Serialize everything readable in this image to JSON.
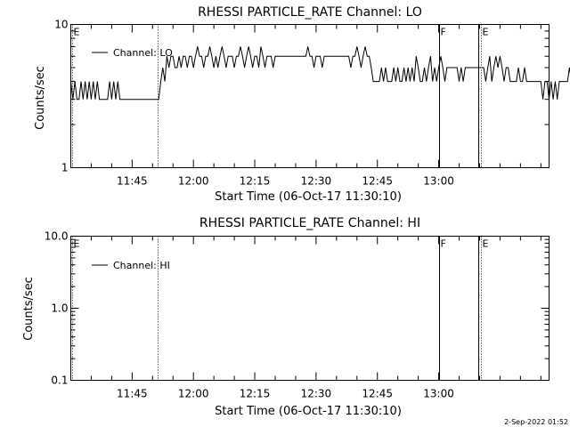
{
  "footer": {
    "stamp": "2-Sep-2022 01:52"
  },
  "chart_data": [
    {
      "type": "line",
      "title": "RHESSI PARTICLE_RATE Channel: LO",
      "xlabel": "Start Time (06-Oct-17 11:30:10)",
      "ylabel": "Counts/sec",
      "yscale": "log",
      "ylim": [
        1,
        10
      ],
      "y_ticks": [
        {
          "v": 1,
          "label": "1"
        },
        {
          "v": 10,
          "label": "10"
        }
      ],
      "xlim": [
        0,
        117
      ],
      "x_ticks": [
        {
          "v": 15,
          "label": "11:45"
        },
        {
          "v": 30,
          "label": "12:00"
        },
        {
          "v": 45,
          "label": "12:15"
        },
        {
          "v": 60,
          "label": "12:30"
        },
        {
          "v": 75,
          "label": "12:45"
        },
        {
          "v": 90,
          "label": "13:00"
        }
      ],
      "legend": {
        "label": "Channel: LO",
        "placement": "top-left"
      },
      "markers": [
        {
          "x": 0.3,
          "label": "E",
          "style": "dotted"
        },
        {
          "x": 21.2,
          "label": "",
          "style": "dotted"
        },
        {
          "x": 90.2,
          "label": "F",
          "style": "solid"
        },
        {
          "x": 99.7,
          "label": "",
          "style": "solid"
        },
        {
          "x": 100.3,
          "label": "E",
          "style": "dotted"
        },
        {
          "x": 121.2,
          "label": "",
          "style": "dotted"
        }
      ],
      "series": [
        {
          "name": "Channel: LO",
          "x_start": 0,
          "x_step": 1,
          "values": [
            4,
            3,
            4,
            3,
            3,
            4,
            3,
            4,
            3,
            4,
            3,
            4,
            3,
            4,
            3,
            3,
            3,
            3,
            3,
            4,
            3,
            4,
            3,
            4,
            3,
            3,
            3,
            3,
            3,
            3,
            3,
            3,
            3,
            3,
            3,
            3,
            3,
            3,
            3,
            3,
            3,
            3,
            3,
            3,
            4,
            5,
            4,
            6,
            5,
            6,
            6,
            5,
            5,
            6,
            5,
            6,
            6,
            5,
            6,
            6,
            5,
            6,
            7,
            6,
            6,
            5,
            6,
            6,
            7,
            6,
            5,
            6,
            5,
            6,
            7,
            6,
            5,
            6,
            6,
            6,
            5,
            6,
            6,
            7,
            6,
            5,
            6,
            7,
            6,
            5,
            6,
            6,
            5,
            7,
            6,
            5,
            6,
            6,
            6,
            5,
            6,
            6,
            6,
            6,
            6,
            6,
            6,
            6,
            6,
            6,
            6,
            6,
            6,
            6,
            6,
            6,
            7,
            6,
            6,
            5,
            6,
            6,
            6,
            5,
            6,
            6,
            6,
            6,
            6,
            6,
            6,
            6,
            6,
            6,
            6,
            6,
            6,
            5,
            6,
            6,
            7,
            6,
            5,
            6,
            7,
            6,
            6,
            5,
            4,
            4,
            4,
            4,
            5,
            4,
            5,
            4,
            4,
            4,
            5,
            4,
            5,
            4,
            4,
            5,
            4,
            5,
            4,
            5,
            4,
            6,
            5,
            4,
            4,
            5,
            4,
            5,
            6,
            4,
            5,
            4,
            5,
            6,
            5,
            4,
            5,
            5,
            5,
            5,
            5,
            5,
            4,
            5,
            4,
            5,
            5,
            5,
            5,
            5,
            5,
            5,
            5,
            5,
            5,
            4,
            5,
            6,
            4,
            5,
            6,
            5,
            6,
            5,
            4,
            5,
            5,
            4,
            4,
            4,
            4,
            5,
            4,
            4,
            5,
            4,
            4,
            4,
            4,
            4,
            4,
            4,
            4,
            3,
            4,
            4,
            3,
            4,
            3,
            4,
            3,
            4,
            4,
            4,
            4,
            4,
            5,
            4,
            5,
            6,
            5,
            4,
            5,
            4,
            4,
            4,
            3,
            4,
            3,
            3
          ],
          "color": "#000000"
        }
      ]
    },
    {
      "type": "line",
      "title": "RHESSI PARTICLE_RATE Channel: HI",
      "xlabel": "Start Time (06-Oct-17 11:30:10)",
      "ylabel": "Counts/sec",
      "yscale": "log",
      "ylim": [
        0.1,
        10
      ],
      "y_ticks": [
        {
          "v": 0.1,
          "label": "0.1"
        },
        {
          "v": 1,
          "label": "1.0"
        },
        {
          "v": 10,
          "label": "10.0"
        }
      ],
      "xlim": [
        0,
        117
      ],
      "x_ticks": [
        {
          "v": 15,
          "label": "11:45"
        },
        {
          "v": 30,
          "label": "12:00"
        },
        {
          "v": 45,
          "label": "12:15"
        },
        {
          "v": 60,
          "label": "12:30"
        },
        {
          "v": 75,
          "label": "12:45"
        },
        {
          "v": 90,
          "label": "13:00"
        }
      ],
      "legend": {
        "label": "Channel: HI",
        "placement": "top-left"
      },
      "markers": [
        {
          "x": 0.3,
          "label": "E",
          "style": "dotted"
        },
        {
          "x": 21.2,
          "label": "",
          "style": "dotted"
        },
        {
          "x": 90.2,
          "label": "F",
          "style": "solid"
        },
        {
          "x": 99.7,
          "label": "",
          "style": "solid"
        },
        {
          "x": 100.3,
          "label": "E",
          "style": "dotted"
        },
        {
          "x": 121.2,
          "label": "",
          "style": "dotted"
        }
      ],
      "series": [
        {
          "name": "Channel: HI",
          "x_start": 0,
          "x_step": 1,
          "values": [],
          "color": "#000000"
        }
      ]
    }
  ]
}
